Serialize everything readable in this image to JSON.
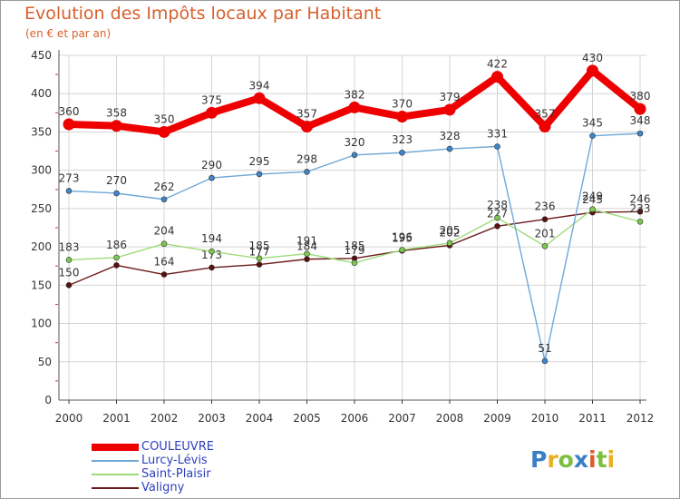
{
  "chart_data": {
    "type": "line",
    "title": "Evolution des Impôts locaux par Habitant",
    "subtitle": "(en € et par an)",
    "xlabel": "",
    "ylabel": "",
    "ylim": [
      0,
      450
    ],
    "yticks": [
      "0",
      "50",
      "100",
      "150",
      "200",
      "250",
      "300",
      "350",
      "400",
      "450"
    ],
    "categories": [
      "2000",
      "2001",
      "2002",
      "2003",
      "2004",
      "2005",
      "2006",
      "2007",
      "2008",
      "2009",
      "2010",
      "2011",
      "2012"
    ],
    "series": [
      {
        "name": "Valigny",
        "color": "#6b1a1a",
        "marker": "#5a0f0f",
        "values": [
          150,
          176,
          164,
          173,
          177,
          184,
          185,
          195,
          202,
          227,
          236,
          245,
          246
        ],
        "labels": [
          "150",
          "",
          "164",
          "173",
          "177",
          "184",
          "185",
          "195",
          "202",
          "227",
          "236",
          "245",
          "246"
        ]
      },
      {
        "name": "Saint-Plaisir",
        "color": "#9ddc7a",
        "marker": "#7cc84e",
        "values": [
          183,
          186,
          204,
          194,
          185,
          191,
          179,
          196,
          205,
          238,
          201,
          249,
          233
        ],
        "labels": [
          "183",
          "186",
          "204",
          "194",
          "185",
          "191",
          "179",
          "196",
          "205",
          "238",
          "201",
          "249",
          "233"
        ]
      },
      {
        "name": "Lurcy-Lévis",
        "color": "#6fa8d8",
        "marker": "#3f86c8",
        "values": [
          273,
          270,
          262,
          290,
          295,
          298,
          320,
          323,
          328,
          331,
          51,
          345,
          348
        ],
        "labels": [
          "273",
          "270",
          "262",
          "290",
          "295",
          "298",
          "320",
          "323",
          "328",
          "331",
          "51",
          "345",
          "348"
        ]
      },
      {
        "name": "COULEUVRE",
        "color": "#ee0000",
        "marker": "#ee0000",
        "values": [
          360,
          358,
          350,
          375,
          394,
          357,
          382,
          370,
          379,
          422,
          357,
          430,
          380
        ],
        "labels": [
          "360",
          "358",
          "350",
          "375",
          "394",
          "357",
          "382",
          "370",
          "379",
          "422",
          "357",
          "430",
          "380"
        ]
      }
    ],
    "legend": [
      "COULEUVRE",
      "Lurcy-Lévis",
      "Saint-Plaisir",
      "Valigny"
    ],
    "legend_position": "bottom-left",
    "grid": true
  },
  "branding": {
    "letters": [
      {
        "char": "P",
        "color": "#3a7fc4"
      },
      {
        "char": "r",
        "color": "#e8b020"
      },
      {
        "char": "o",
        "color": "#7cbf3e"
      },
      {
        "char": "x",
        "color": "#3a7fc4"
      },
      {
        "char": "i",
        "color": "#e05a2a"
      },
      {
        "char": "t",
        "color": "#7cbf3e"
      },
      {
        "char": "i",
        "color": "#e8b020"
      }
    ]
  }
}
